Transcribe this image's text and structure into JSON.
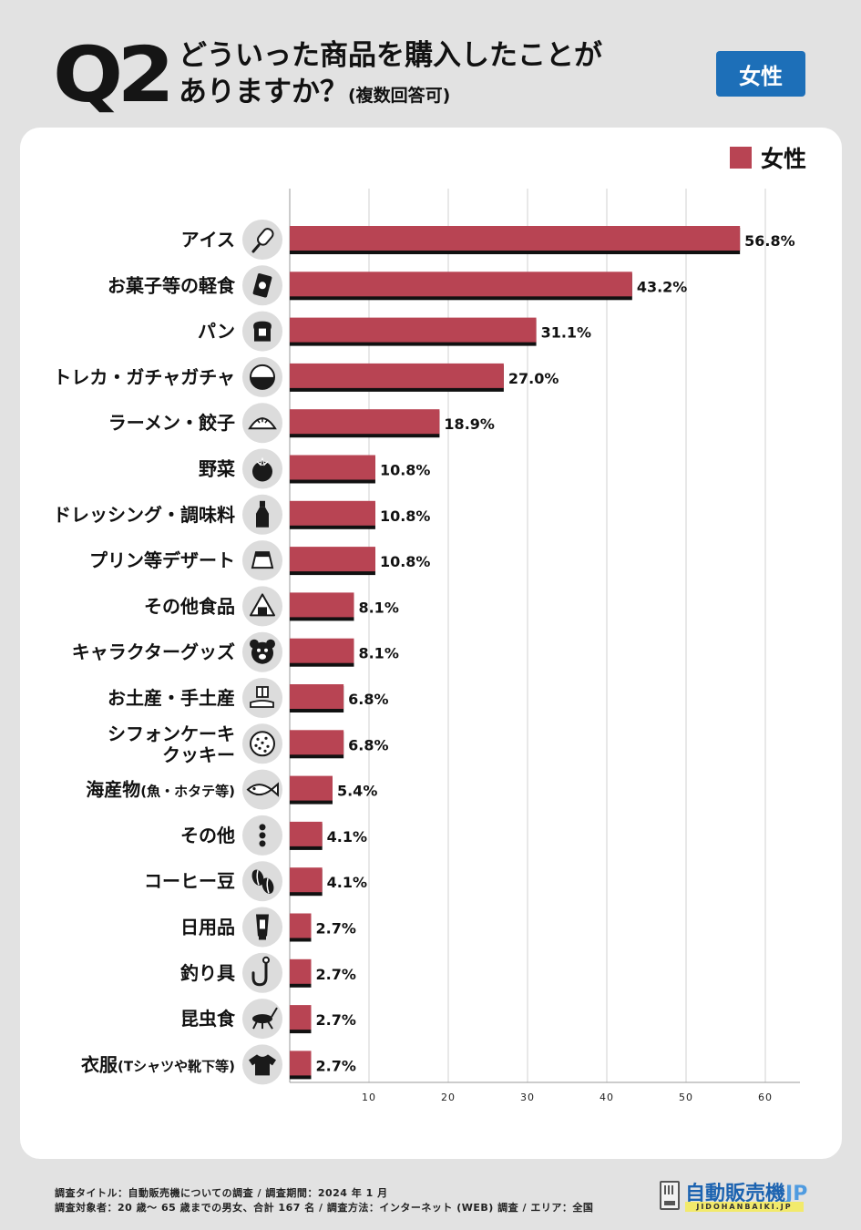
{
  "header": {
    "q_number": "Q2",
    "question_line1": "どういった商品を購入したことが",
    "question_line2": "ありますか？",
    "question_note": "(複数回答可)",
    "badge": "女性"
  },
  "footer": {
    "line1": "調査タイトル：自動販売機についての調査 / 調査期間：2024 年 1 月",
    "line2": "調査対象者：20 歳～ 65 歳までの男女、合計 167 名 / 調査方法：インターネット (WEB) 調査 / エリア：全国"
  },
  "brand": {
    "name": "自動販売機",
    "suffix": "JP",
    "sub": "JIDOHANBAIKI.JP"
  },
  "colors": {
    "bar": "#b84453",
    "bar_shadow": "#111111",
    "badge": "#1d6fb8",
    "icon_circle": "#dcdcdc"
  },
  "chart_data": {
    "type": "bar",
    "orientation": "horizontal",
    "legend": [
      "女性"
    ],
    "legend_position": "top-right",
    "xlim": [
      0,
      65
    ],
    "x_ticks": [
      10,
      20,
      30,
      40,
      50,
      60
    ],
    "grid": true,
    "series": [
      {
        "name": "女性",
        "values": [
          56.8,
          43.2,
          31.1,
          27.0,
          18.9,
          10.8,
          10.8,
          10.8,
          8.1,
          8.1,
          6.8,
          6.8,
          5.4,
          4.1,
          4.1,
          2.7,
          2.7,
          2.7,
          2.7
        ]
      }
    ],
    "value_labels": [
      "56.8%",
      "43.2%",
      "31.1%",
      "27.0%",
      "18.9%",
      "10.8%",
      "10.8%",
      "10.8%",
      "8.1%",
      "8.1%",
      "6.8%",
      "6.8%",
      "5.4%",
      "4.1%",
      "4.1%",
      "2.7%",
      "2.7%",
      "2.7%",
      "2.7%"
    ],
    "categories": [
      {
        "lines": [
          "アイス"
        ],
        "icon": "ice-pop-icon"
      },
      {
        "lines": [
          "お菓子等の軽食"
        ],
        "icon": "snack-bag-icon"
      },
      {
        "lines": [
          "パン"
        ],
        "icon": "bread-icon"
      },
      {
        "lines": [
          "トレカ・ガチャガチャ"
        ],
        "icon": "capsule-toy-icon"
      },
      {
        "lines": [
          "ラーメン・餃子"
        ],
        "icon": "dumpling-icon"
      },
      {
        "lines": [
          "野菜"
        ],
        "icon": "tomato-icon"
      },
      {
        "lines": [
          "ドレッシング・調味料"
        ],
        "icon": "bottle-icon"
      },
      {
        "lines": [
          "プリン等デザート"
        ],
        "icon": "pudding-icon"
      },
      {
        "lines": [
          "その他食品"
        ],
        "icon": "rice-ball-icon"
      },
      {
        "lines": [
          "キャラクターグッズ"
        ],
        "icon": "bear-icon"
      },
      {
        "lines": [
          "お土産・手土産"
        ],
        "icon": "gift-hand-icon"
      },
      {
        "lines": [
          "シフォンケーキ",
          "クッキー"
        ],
        "icon": "cookie-icon"
      },
      {
        "lines": [
          "海産物",
          "(魚・ホタテ等)"
        ],
        "icon": "fish-icon"
      },
      {
        "lines": [
          "その他"
        ],
        "icon": "more-dots-icon"
      },
      {
        "lines": [
          "コーヒー豆"
        ],
        "icon": "coffee-beans-icon"
      },
      {
        "lines": [
          "日用品"
        ],
        "icon": "tube-icon"
      },
      {
        "lines": [
          "釣り具"
        ],
        "icon": "fishhook-icon"
      },
      {
        "lines": [
          "昆虫食"
        ],
        "icon": "cricket-icon"
      },
      {
        "lines": [
          "衣服",
          "(Tシャツや靴下等)"
        ],
        "icon": "tshirt-icon"
      }
    ]
  }
}
